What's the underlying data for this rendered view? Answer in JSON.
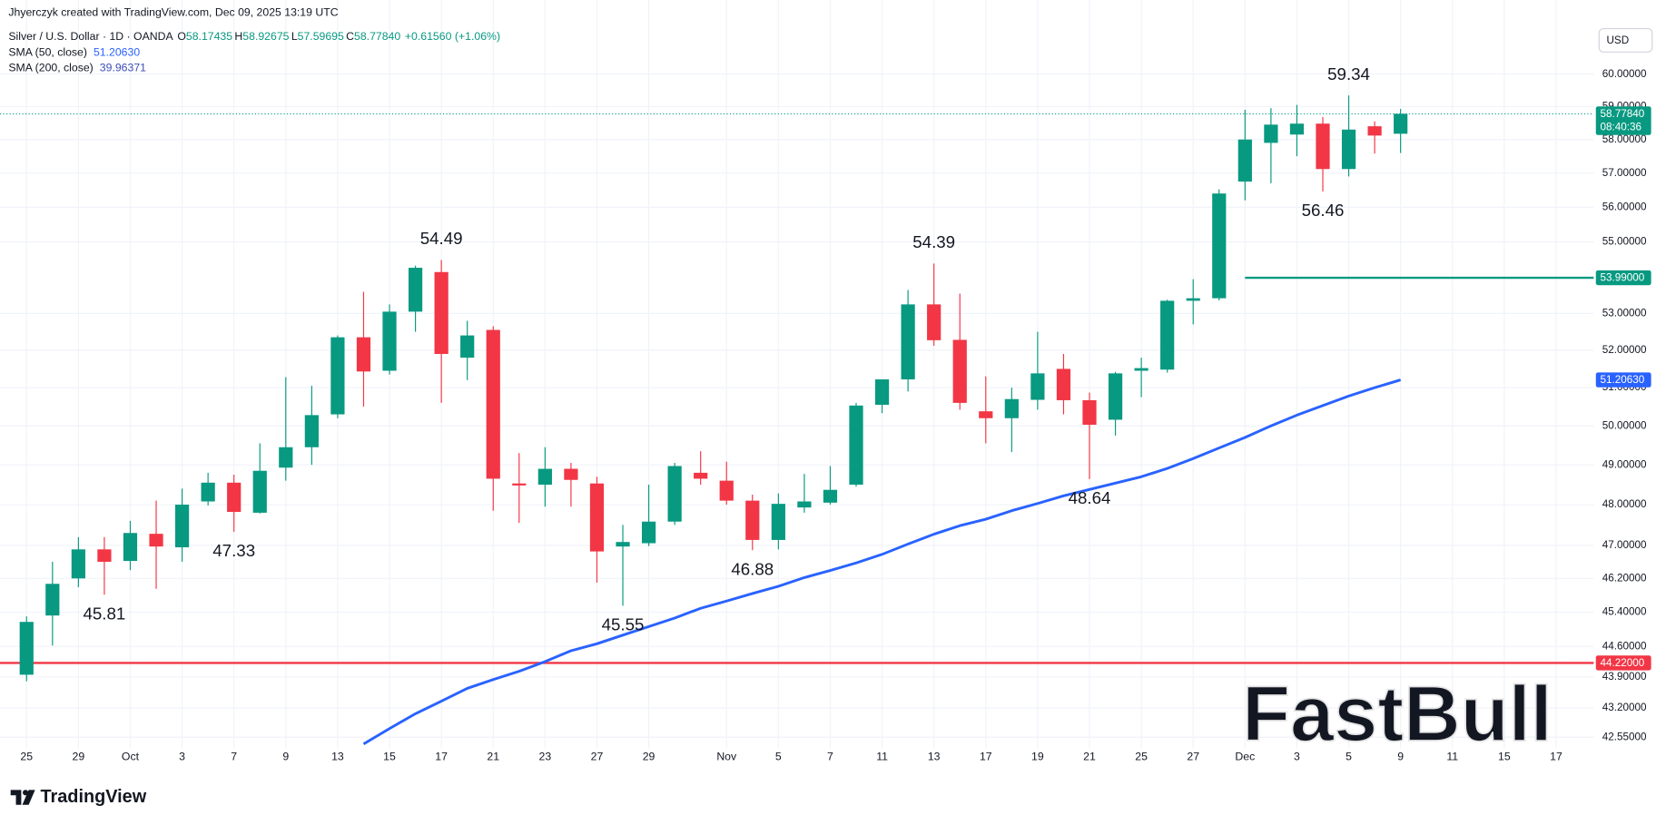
{
  "header": {
    "attribution": "Jhyerczyk created with TradingView.com, Dec 09, 2025 13:19 UTC"
  },
  "footer": {
    "logo": "TradingView"
  },
  "watermark": "FastBull",
  "chart_data": {
    "type": "candlestick",
    "title": "Silver / U.S. Dollar · 1D · OANDA",
    "ohlc": [
      {
        "key": "O",
        "value": 58.17435
      },
      {
        "key": "H",
        "value": 58.92675
      },
      {
        "key": "L",
        "value": 57.59695
      },
      {
        "key": "C",
        "value": {
          "value": 58.7784,
          "label": "58.77840"
        }
      }
    ],
    "change": {
      "value": 0.6156,
      "label": "+0.61560"
    },
    "change_percent": {
      "value": 1.06,
      "label": "(+1.06%)"
    },
    "currency": "USD",
    "colors": {
      "up": "#089981",
      "down": "#f23645"
    },
    "categories": [
      "25",
      null,
      "29",
      null,
      "Oct",
      null,
      "3",
      null,
      "7",
      null,
      "9",
      null,
      "13",
      null,
      "15",
      null,
      "17",
      null,
      "21",
      null,
      "23",
      null,
      "27",
      null,
      "29",
      null,
      null,
      "Nov",
      null,
      "5",
      null,
      "7",
      null,
      "11",
      null,
      "13",
      null,
      "17",
      null,
      "19",
      null,
      "21",
      null,
      "25",
      null,
      "27",
      null,
      "Dec",
      null,
      "3",
      null,
      "5",
      null,
      "9",
      null,
      "11",
      null,
      "15",
      null,
      "17",
      null
    ],
    "open": [
      43.95,
      45.32,
      46.2,
      46.9,
      46.62,
      47.28,
      46.95,
      48.08,
      48.55,
      47.8,
      48.93,
      49.45,
      50.3,
      52.35,
      51.45,
      53.05,
      54.15,
      51.8,
      52.55,
      48.53,
      48.5,
      48.9,
      48.53,
      46.97,
      47.05,
      47.58,
      48.8,
      48.6,
      48.1,
      47.13,
      47.93,
      48.05,
      48.5,
      50.55,
      51.22,
      53.25,
      52.28,
      50.38,
      50.2,
      50.68,
      51.5,
      50.67,
      50.16,
      51.45,
      51.48,
      53.35,
      53.42,
      56.75,
      57.9,
      58.15,
      58.48,
      57.12,
      58.4,
      58.17435,
      null,
      null,
      null,
      null,
      null,
      null,
      null
    ],
    "high": [
      45.3,
      46.6,
      47.2,
      47.2,
      47.6,
      48.1,
      48.4,
      48.8,
      48.75,
      49.55,
      51.28,
      51.05,
      52.4,
      53.6,
      53.25,
      54.33,
      54.49,
      52.8,
      52.65,
      49.3,
      49.45,
      49.05,
      48.7,
      47.5,
      48.5,
      49.05,
      49.35,
      49.08,
      48.25,
      48.28,
      48.77,
      48.97,
      50.6,
      51.22,
      53.65,
      54.39,
      53.55,
      51.3,
      51.0,
      52.5,
      51.9,
      50.87,
      51.42,
      51.8,
      53.38,
      53.95,
      56.52,
      58.9,
      58.95,
      59.05,
      58.68,
      59.34,
      58.55,
      58.92675,
      null,
      null,
      null,
      null,
      null,
      null,
      null
    ],
    "low": [
      43.8,
      44.62,
      45.99,
      45.81,
      46.4,
      45.95,
      46.6,
      47.98,
      47.33,
      47.78,
      48.6,
      49.0,
      50.2,
      50.5,
      51.35,
      52.5,
      50.6,
      51.2,
      47.85,
      47.55,
      47.95,
      47.95,
      46.1,
      45.55,
      46.98,
      47.5,
      48.5,
      48.0,
      46.88,
      46.9,
      47.8,
      48.0,
      48.45,
      50.33,
      50.9,
      52.12,
      50.42,
      49.55,
      49.33,
      50.42,
      50.3,
      48.64,
      49.75,
      50.75,
      51.4,
      52.7,
      53.36,
      56.2,
      56.7,
      57.5,
      56.46,
      56.9,
      57.58,
      57.59695,
      null,
      null,
      null,
      null,
      null,
      null,
      null
    ],
    "close": [
      45.17,
      46.07,
      46.9,
      46.6,
      47.3,
      46.97,
      48.0,
      48.55,
      47.82,
      48.85,
      49.45,
      50.28,
      52.35,
      51.43,
      53.05,
      54.27,
      51.9,
      52.4,
      48.65,
      48.48,
      48.9,
      48.62,
      46.85,
      47.08,
      47.58,
      48.97,
      48.65,
      48.1,
      47.13,
      48.02,
      48.08,
      48.37,
      50.53,
      51.22,
      53.25,
      52.27,
      50.6,
      50.2,
      50.7,
      51.38,
      50.67,
      50.03,
      51.38,
      51.52,
      53.35,
      53.42,
      56.4,
      58.0,
      58.45,
      58.48,
      57.12,
      58.3,
      58.12,
      58.7784,
      null,
      null,
      null,
      null,
      null,
      null,
      null
    ],
    "series": [
      {
        "name": "SMA (50, close)",
        "color": "#2962ff",
        "values": [
          null,
          null,
          null,
          null,
          null,
          null,
          null,
          null,
          null,
          null,
          null,
          null,
          null,
          42.4,
          42.74,
          43.07,
          43.35,
          43.64,
          43.84,
          44.03,
          44.25,
          44.5,
          44.66,
          44.86,
          45.06,
          45.26,
          45.49,
          45.66,
          45.84,
          46.01,
          46.22,
          46.39,
          46.57,
          46.78,
          47.03,
          47.27,
          47.48,
          47.64,
          47.85,
          48.03,
          48.22,
          48.38,
          48.54,
          48.7,
          48.91,
          49.16,
          49.43,
          49.7,
          50.0,
          50.28,
          50.53,
          50.78,
          51.0,
          51.2063,
          null,
          null,
          null,
          null,
          null,
          null,
          null
        ],
        "last": {
          "value": 51.2063,
          "label": "51.20630"
        }
      },
      {
        "name": "SMA (200, close)",
        "color": "#3d4db7",
        "last": 39.96371
      }
    ],
    "hlines": [
      {
        "value": {
          "value": 53.99,
          "label": "53.99000"
        },
        "color": "#089981",
        "start": "Dec"
      },
      {
        "value": {
          "value": 44.22,
          "label": "44.22000"
        },
        "color": "#f23645"
      }
    ],
    "last_price": {
      "value": 58.7784,
      "label": "58.77840"
    },
    "countdown": "08:40:36",
    "annotations": [
      59.34,
      56.46,
      54.49,
      54.39,
      48.64,
      47.33,
      46.88,
      45.81,
      45.55
    ],
    "log": true,
    "grid": true,
    "ylim": [
      42.3,
      62.35
    ],
    "yticks": [
      {
        "value": 60,
        "label": "60.00000"
      },
      {
        "value": 59,
        "label": "59.00000"
      },
      {
        "value": 58,
        "label": "58.00000"
      },
      {
        "value": 57,
        "label": "57.00000"
      },
      {
        "value": 56,
        "label": "56.00000"
      },
      {
        "value": 55,
        "label": "55.00000"
      },
      {
        "value": 53,
        "label": "53.00000"
      },
      {
        "value": 52,
        "label": "52.00000"
      },
      {
        "value": 51,
        "label": "51.00000"
      },
      {
        "value": 50,
        "label": "50.00000"
      },
      {
        "value": 49,
        "label": "49.00000"
      },
      {
        "value": 48,
        "label": "48.00000"
      },
      {
        "value": 47,
        "label": "47.00000"
      },
      {
        "value": 46.2,
        "label": "46.20000"
      },
      {
        "value": 45.4,
        "label": "45.40000"
      },
      {
        "value": 44.6,
        "label": "44.60000"
      },
      {
        "value": 43.9,
        "label": "43.90000"
      },
      {
        "value": 43.2,
        "label": "43.20000"
      },
      {
        "value": 42.55,
        "label": "42.55000"
      }
    ]
  }
}
